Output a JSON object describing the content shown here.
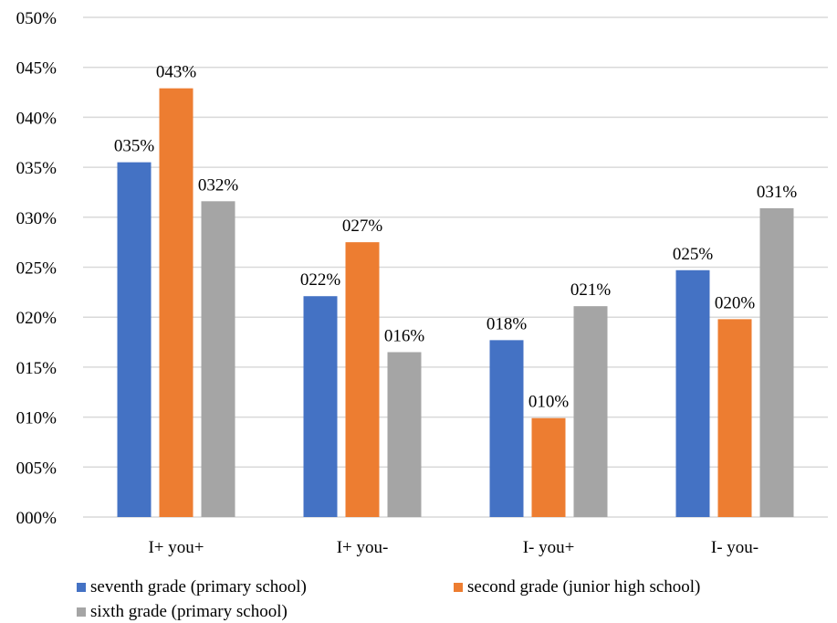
{
  "chart_data": {
    "type": "bar",
    "categories": [
      "I+ you+",
      "I+ you-",
      "I- you+",
      "I- you-"
    ],
    "series": [
      {
        "name": "seventh grade (primary school)",
        "color": "#4472C4",
        "values": [
          0.355,
          0.221,
          0.177,
          0.247
        ],
        "labels": [
          "035%",
          "022%",
          "018%",
          "025%"
        ]
      },
      {
        "name": "second grade (junior high school)",
        "color": "#ED7D31",
        "values": [
          0.429,
          0.275,
          0.099,
          0.198
        ],
        "labels": [
          "043%",
          "027%",
          "010%",
          "020%"
        ]
      },
      {
        "name": "sixth grade (primary school)",
        "color": "#A5A5A5",
        "values": [
          0.316,
          0.165,
          0.211,
          0.309
        ],
        "labels": [
          "032%",
          "016%",
          "021%",
          "031%"
        ]
      }
    ],
    "ylim": [
      0,
      0.5
    ],
    "yticks": [
      0,
      0.05,
      0.1,
      0.15,
      0.2,
      0.25,
      0.3,
      0.35,
      0.4,
      0.45,
      0.5
    ],
    "ytick_labels": [
      "000%",
      "005%",
      "010%",
      "015%",
      "020%",
      "025%",
      "030%",
      "035%",
      "040%",
      "045%",
      "050%"
    ],
    "grid": true,
    "gridline_color": "#D9D9D9",
    "legend_position": "bottom",
    "title": "",
    "xlabel": "",
    "ylabel": ""
  }
}
